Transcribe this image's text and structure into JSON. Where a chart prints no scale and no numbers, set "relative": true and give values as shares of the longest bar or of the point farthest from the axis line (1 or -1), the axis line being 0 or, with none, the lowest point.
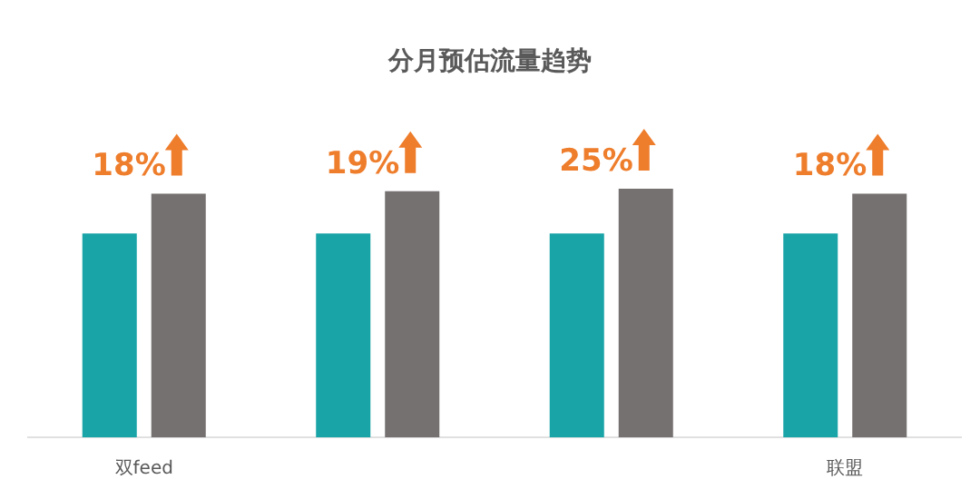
{
  "chart_data": {
    "type": "bar",
    "title": "分月预估流量趋势",
    "categories": [
      "双feed",
      null,
      null,
      "联盟"
    ],
    "relative": true,
    "series": [
      {
        "color": "#19a4a8",
        "values": [
          0.82,
          0.82,
          0.82,
          0.82
        ]
      },
      {
        "color": "#757170",
        "values": [
          0.98,
          0.99,
          1,
          0.98
        ]
      }
    ],
    "annotations": [
      "18%",
      "19%",
      "25%",
      "18%"
    ],
    "grid": false
  }
}
